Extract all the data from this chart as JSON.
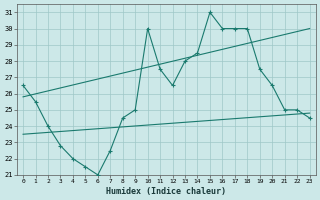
{
  "line1_x": [
    0,
    1,
    2,
    3,
    4,
    5,
    6,
    7,
    8,
    9,
    10,
    11,
    12,
    13,
    14,
    15,
    16,
    17,
    18,
    19,
    20,
    21,
    22,
    23
  ],
  "line1_y": [
    26.5,
    25.5,
    24.0,
    22.8,
    22.0,
    21.5,
    21.0,
    22.5,
    24.5,
    25.0,
    30.0,
    27.5,
    26.5,
    28.0,
    28.5,
    31.0,
    30.0,
    30.0,
    30.0,
    27.5,
    26.5,
    25.0,
    25.0,
    24.5
  ],
  "line2_x": [
    0,
    23
  ],
  "line2_y": [
    25.8,
    30.0
  ],
  "line3_x": [
    0,
    23
  ],
  "line3_y": [
    23.5,
    24.8
  ],
  "color": "#1a7a6e",
  "bg_color": "#cce8e8",
  "grid_color": "#9fc8c8",
  "xlabel": "Humidex (Indice chaleur)",
  "ylabel_ticks": [
    21,
    22,
    23,
    24,
    25,
    26,
    27,
    28,
    29,
    30,
    31
  ],
  "xlim": [
    -0.5,
    23.5
  ],
  "ylim": [
    21.0,
    31.5
  ],
  "xticks": [
    0,
    1,
    2,
    3,
    4,
    5,
    6,
    7,
    8,
    9,
    10,
    11,
    12,
    13,
    14,
    15,
    16,
    17,
    18,
    19,
    20,
    21,
    22,
    23
  ]
}
